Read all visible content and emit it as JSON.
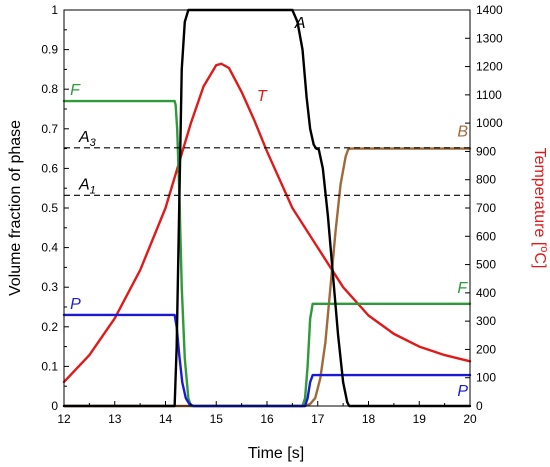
{
  "chart_data": {
    "type": "line",
    "xlabel": "Time [s]",
    "ylabel_left": "Volume fraction of phase",
    "ylabel_right": "Temperature [°C]",
    "x_range": [
      12,
      20
    ],
    "y_left_range": [
      0,
      1
    ],
    "y_right_range": [
      0,
      1400
    ],
    "x_ticks": [
      "12",
      "13",
      "14",
      "15",
      "16",
      "17",
      "18",
      "19",
      "20"
    ],
    "y_left_ticks": [
      "0",
      "0.1",
      "0.2",
      "0.3",
      "0.4",
      "0.5",
      "0.6",
      "0.7",
      "0.8",
      "0.9",
      "1"
    ],
    "y_right_ticks": [
      "0",
      "100",
      "200",
      "300",
      "400",
      "500",
      "600",
      "700",
      "800",
      "900",
      "1000",
      "1100",
      "1200",
      "1300",
      "1400"
    ],
    "grid": false,
    "colors": {
      "A": "#000000",
      "F": "#2e9a3a",
      "P": "#1a1ad6",
      "B": "#a0693a",
      "T": "#e01a1a",
      "reference": "#000000",
      "right_axis_title": "#e01a1a"
    },
    "series": [
      {
        "name": "A",
        "axis": "left",
        "x": [
          12,
          14.18,
          14.22,
          14.27,
          14.32,
          14.38,
          14.45,
          14.5,
          16.5,
          16.6,
          16.7,
          16.78,
          16.85,
          16.92,
          16.97,
          17.02,
          17.1,
          17.2,
          17.3,
          17.4,
          17.5,
          17.58,
          17.62,
          20
        ],
        "y": [
          0,
          0,
          0.15,
          0.5,
          0.85,
          0.97,
          1,
          1,
          1,
          0.97,
          0.9,
          0.78,
          0.7,
          0.66,
          0.65,
          0.648,
          0.6,
          0.48,
          0.33,
          0.18,
          0.06,
          0.01,
          0,
          0
        ]
      },
      {
        "name": "F",
        "axis": "left",
        "x": [
          12,
          14.18,
          14.2,
          14.23,
          14.27,
          14.32,
          14.38,
          14.45,
          14.5,
          16.7,
          16.75,
          16.8,
          16.85,
          16.9,
          20
        ],
        "y": [
          0.77,
          0.77,
          0.76,
          0.7,
          0.55,
          0.3,
          0.12,
          0.02,
          0,
          0,
          0.02,
          0.1,
          0.22,
          0.258,
          0.258
        ]
      },
      {
        "name": "P",
        "axis": "left",
        "x": [
          12,
          14.18,
          14.22,
          14.27,
          14.33,
          14.4,
          14.47,
          14.55,
          16.75,
          16.8,
          16.85,
          16.9,
          20
        ],
        "y": [
          0.23,
          0.23,
          0.2,
          0.13,
          0.06,
          0.02,
          0.005,
          0,
          0,
          0.02,
          0.06,
          0.078,
          0.078
        ]
      },
      {
        "name": "B",
        "axis": "left",
        "x": [
          12,
          16.75,
          16.85,
          16.95,
          17.05,
          17.15,
          17.25,
          17.35,
          17.45,
          17.55,
          17.6,
          17.65,
          20
        ],
        "y": [
          0,
          0,
          0.005,
          0.02,
          0.07,
          0.16,
          0.3,
          0.44,
          0.56,
          0.63,
          0.648,
          0.65,
          0.65
        ]
      },
      {
        "name": "T",
        "axis": "right",
        "x": [
          12,
          12.5,
          13,
          13.5,
          13.75,
          14,
          14.25,
          14.5,
          14.75,
          15,
          15.1,
          15.25,
          15.5,
          15.75,
          16,
          16.5,
          17,
          17.5,
          18,
          18.5,
          19,
          19.5,
          20
        ],
        "y": [
          85,
          180,
          310,
          480,
          590,
          700,
          850,
          1000,
          1130,
          1205,
          1210,
          1195,
          1110,
          1010,
          900,
          700,
          560,
          420,
          320,
          255,
          210,
          180,
          158
        ]
      }
    ],
    "reference_lines": [
      {
        "name": "A3",
        "label_base": "A",
        "label_sub": "3",
        "axis": "left",
        "y": 0.652,
        "style": "dashed"
      },
      {
        "name": "A1",
        "label_base": "A",
        "label_sub": "1",
        "axis": "left",
        "y": 0.532,
        "style": "dashed"
      }
    ],
    "annotations": [
      {
        "text": "A",
        "series": "A",
        "x": 16.55,
        "y": 0.955
      },
      {
        "text": "T",
        "series": "T",
        "x": 15.8,
        "y": 0.77
      },
      {
        "text": "F",
        "series": "F",
        "x": 12.12,
        "y": 0.785
      },
      {
        "text": "F",
        "series": "F",
        "x": 19.75,
        "y": 0.285
      },
      {
        "text": "P",
        "series": "P",
        "x": 12.12,
        "y": 0.245
      },
      {
        "text": "P",
        "series": "P",
        "x": 19.75,
        "y": 0.025
      },
      {
        "text": "B",
        "series": "B",
        "x": 19.75,
        "y": 0.68
      }
    ]
  }
}
